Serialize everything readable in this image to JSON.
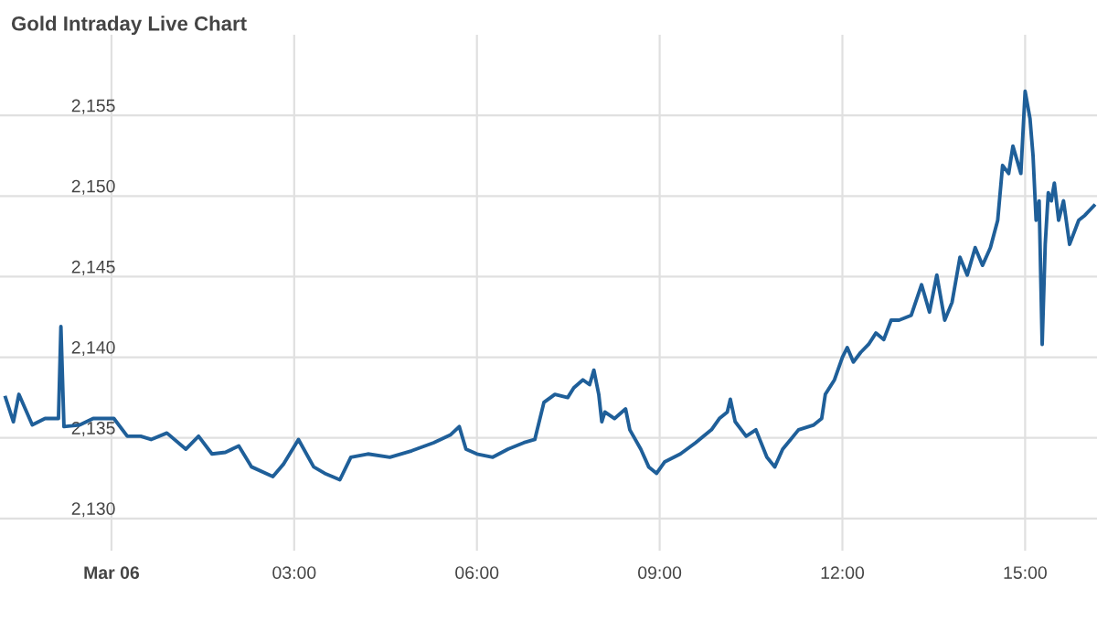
{
  "chart_data": {
    "type": "line",
    "title": "Gold Intraday Live Chart",
    "x": [
      -1.74,
      -1.61,
      -1.52,
      -1.3,
      -1.09,
      -0.87,
      -0.83,
      -0.78,
      -0.52,
      -0.3,
      0.04,
      0.26,
      0.48,
      0.65,
      0.91,
      1.22,
      1.43,
      1.65,
      1.87,
      2.09,
      2.3,
      2.65,
      2.83,
      3.07,
      3.32,
      3.5,
      3.75,
      3.93,
      4.21,
      4.57,
      4.93,
      5.29,
      5.57,
      5.71,
      5.82,
      6,
      6.26,
      6.51,
      6.77,
      6.95,
      7.1,
      7.28,
      7.49,
      7.59,
      7.74,
      7.85,
      7.92,
      8.0,
      8.05,
      8.1,
      8.26,
      8.44,
      8.51,
      8.69,
      8.82,
      8.95,
      9.08,
      9.34,
      9.59,
      9.85,
      9.98,
      10.11,
      10.16,
      10.24,
      10.42,
      10.58,
      10.76,
      10.89,
      11.02,
      11.15,
      11.28,
      11.53,
      11.66,
      11.72,
      11.87,
      12,
      12.08,
      12.18,
      12.3,
      12.43,
      12.55,
      12.68,
      12.8,
      12.93,
      13.13,
      13.3,
      13.43,
      13.55,
      13.68,
      13.8,
      13.93,
      14.05,
      14.18,
      14.3,
      14.43,
      14.55,
      14.63,
      14.73,
      14.8,
      14.93,
      15,
      15.08,
      15.13,
      15.18,
      15.23,
      15.28,
      15.33,
      15.38,
      15.43,
      15.48,
      15.55,
      15.63,
      15.73,
      15.88,
      15.98,
      16.13
    ],
    "series": [
      {
        "color": "#1f5f99",
        "values": [
          2137.5,
          2136.0,
          2137.7,
          2135.8,
          2136.2,
          2136.2,
          2141.9,
          2135.7,
          2135.8,
          2136.2,
          2136.2,
          2135.1,
          2135.1,
          2134.9,
          2135.3,
          2134.3,
          2135.1,
          2134.0,
          2134.1,
          2134.5,
          2133.2,
          2132.6,
          2133.4,
          2134.9,
          2133.2,
          2132.8,
          2132.4,
          2133.8,
          2134.0,
          2133.8,
          2134.2,
          2134.7,
          2135.2,
          2135.7,
          2134.3,
          2134.0,
          2133.8,
          2134.3,
          2134.7,
          2134.9,
          2137.2,
          2137.7,
          2137.5,
          2138.1,
          2138.6,
          2138.3,
          2139.2,
          2137.7,
          2136.0,
          2136.6,
          2136.2,
          2136.8,
          2135.5,
          2134.3,
          2133.2,
          2132.8,
          2133.5,
          2134.0,
          2134.7,
          2135.5,
          2136.2,
          2136.6,
          2137.4,
          2136.0,
          2135.1,
          2135.5,
          2133.8,
          2133.2,
          2134.3,
          2134.9,
          2135.5,
          2135.8,
          2136.2,
          2137.7,
          2138.6,
          2140.0,
          2140.6,
          2139.7,
          2140.3,
          2140.8,
          2141.5,
          2141.1,
          2142.3,
          2142.3,
          2142.6,
          2144.5,
          2142.8,
          2145.1,
          2142.3,
          2143.4,
          2146.2,
          2145.1,
          2146.8,
          2145.7,
          2146.8,
          2148.5,
          2151.9,
          2151.4,
          2153.1,
          2151.4,
          2156.5,
          2154.8,
          2152.5,
          2148.5,
          2149.7,
          2140.8,
          2147.0,
          2150.2,
          2149.7,
          2150.8,
          2148.5,
          2149.7,
          2147.0,
          2148.5,
          2148.8,
          2149.4
        ]
      }
    ],
    "xlim": [
      -1.83,
      16.18
    ],
    "ylim": [
      2128,
      2160
    ],
    "xticks": [
      {
        "value": 0,
        "label": "Mar 06"
      },
      {
        "value": 3,
        "label": "03:00"
      },
      {
        "value": 6,
        "label": "06:00"
      },
      {
        "value": 9,
        "label": "09:00"
      },
      {
        "value": 12,
        "label": "12:00"
      },
      {
        "value": 15,
        "label": "15:00"
      }
    ],
    "yticks": [
      {
        "value": 2130,
        "label": "2,130"
      },
      {
        "value": 2135,
        "label": "2,135"
      },
      {
        "value": 2140,
        "label": "2,140"
      },
      {
        "value": 2145,
        "label": "2,145"
      },
      {
        "value": 2150,
        "label": "2,150"
      },
      {
        "value": 2155,
        "label": "2,155"
      }
    ],
    "grid": true,
    "legend": false,
    "marker": "none",
    "line_style": "solid"
  }
}
